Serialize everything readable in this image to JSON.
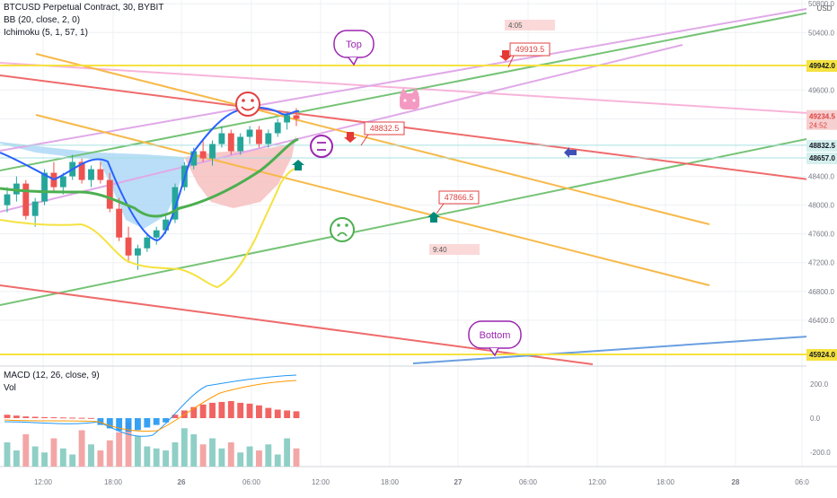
{
  "legend": {
    "symbol": "BTCUSD Perpetual Contract, 30, BYBIT",
    "bb": "BB (20, close, 2, 0)",
    "ichimoku": "Ichimoku (5, 1, 57, 1)",
    "macd": "MACD (12, 26, close, 9)",
    "vol": "Vol"
  },
  "chart_data": {
    "type": "line",
    "title": "BTCUSD Perpetual Contract, 30, BYBIT",
    "currency_label": "USD",
    "price_axis": {
      "ticks": [
        "50800.0",
        "50400.0",
        "49600.0",
        "49200.0",
        "48400.0",
        "48000.0",
        "47600.0",
        "47200.0",
        "46800.0",
        "46400.0"
      ],
      "range": [
        45900,
        50850
      ]
    },
    "price_tags": [
      {
        "label": "49942.0",
        "kind": "yellow",
        "value": 49942
      },
      {
        "label": "49234.5",
        "sub": "24:52",
        "kind": "red",
        "value": 49234.5
      },
      {
        "label": "48832.5",
        "kind": "teal",
        "value": 48832.5
      },
      {
        "label": "48657.0",
        "kind": "teal",
        "value": 48657
      },
      {
        "label": "45924.0",
        "kind": "yellow",
        "value": 45924
      }
    ],
    "time_axis": [
      "12:00",
      "18:00",
      "26",
      "06:00",
      "12:00",
      "18:00",
      "27",
      "06:00",
      "12:00",
      "18:00",
      "28",
      "06:0"
    ],
    "macd_axis": [
      "200.0",
      "0.0",
      "-200.0"
    ],
    "annotations": {
      "top": "Top",
      "bottom": "Bottom",
      "marker_49919": "49919.5",
      "marker_48832": "48832.5",
      "marker_47866": "47866.5",
      "box_405": "4:05",
      "box_940": "9:40"
    },
    "candles": [
      [
        48000,
        48250,
        47900,
        48150
      ],
      [
        48150,
        48400,
        48050,
        48300
      ],
      [
        48300,
        48350,
        47800,
        47850
      ],
      [
        47850,
        48100,
        47700,
        48050
      ],
      [
        48050,
        48500,
        48000,
        48450
      ],
      [
        48450,
        48600,
        48200,
        48250
      ],
      [
        48250,
        48450,
        48150,
        48400
      ],
      [
        48400,
        48700,
        48350,
        48600
      ],
      [
        48600,
        48650,
        48300,
        48350
      ],
      [
        48350,
        48550,
        48250,
        48500
      ],
      [
        48500,
        48600,
        48300,
        48350
      ],
      [
        48350,
        48450,
        47900,
        47950
      ],
      [
        47950,
        48100,
        47500,
        47550
      ],
      [
        47550,
        47700,
        47200,
        47300
      ],
      [
        47300,
        47450,
        47100,
        47400
      ],
      [
        47400,
        47600,
        47350,
        47550
      ],
      [
        47550,
        47700,
        47450,
        47650
      ],
      [
        47650,
        47850,
        47600,
        47800
      ],
      [
        47800,
        48300,
        47750,
        48250
      ],
      [
        48250,
        48600,
        48200,
        48550
      ],
      [
        48550,
        48800,
        48500,
        48750
      ],
      [
        48750,
        48900,
        48600,
        48650
      ],
      [
        48650,
        48900,
        48550,
        48850
      ],
      [
        48850,
        49100,
        48800,
        49000
      ],
      [
        49000,
        49050,
        48700,
        48750
      ],
      [
        48750,
        49000,
        48700,
        48950
      ],
      [
        48950,
        49100,
        48850,
        49050
      ],
      [
        49050,
        49100,
        48800,
        48850
      ],
      [
        48850,
        49050,
        48800,
        49000
      ],
      [
        49000,
        49200,
        48950,
        49150
      ],
      [
        49150,
        49300,
        49050,
        49250
      ],
      [
        49250,
        49350,
        49100,
        49200
      ]
    ],
    "macd_hist": [
      20,
      15,
      10,
      8,
      6,
      5,
      4,
      3,
      2,
      1,
      -40,
      -60,
      -75,
      -80,
      -70,
      -55,
      -40,
      -25,
      20,
      45,
      65,
      80,
      90,
      95,
      100,
      90,
      85,
      75,
      60,
      50,
      45,
      40
    ],
    "volume": [
      60,
      40,
      80,
      50,
      35,
      70,
      45,
      30,
      90,
      55,
      40,
      65,
      85,
      110,
      75,
      50,
      45,
      40,
      60,
      95,
      80,
      55,
      70,
      45,
      60,
      35,
      50,
      40,
      55,
      30,
      70,
      45
    ],
    "gridlines": true
  }
}
